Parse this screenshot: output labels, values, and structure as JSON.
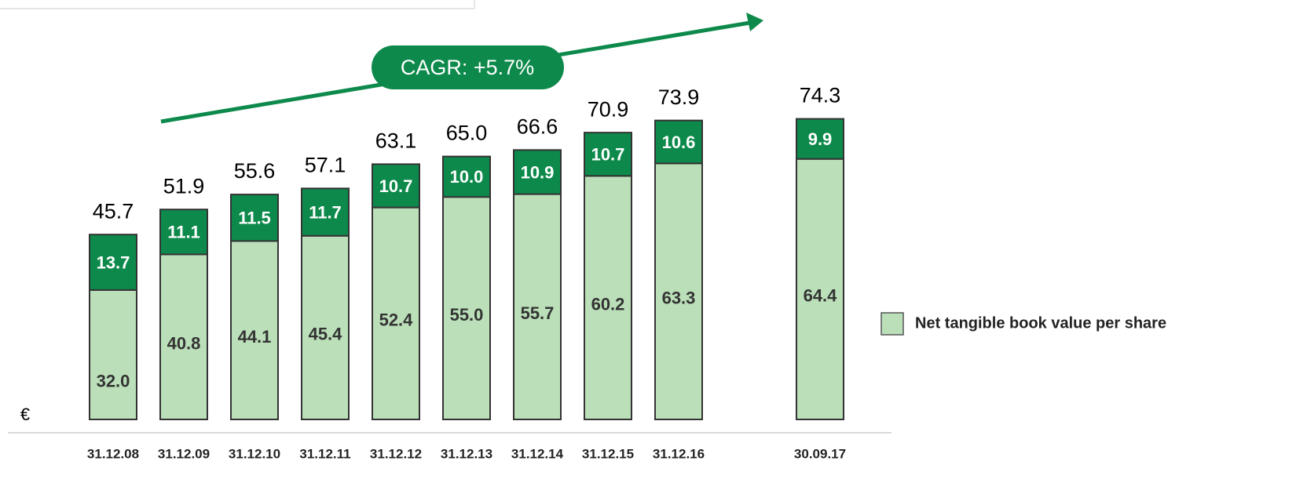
{
  "chart_data": {
    "type": "stacked_bar",
    "annotation": "CAGR: +5.7%",
    "unit_label": "€",
    "categories": [
      "31.12.08",
      "31.12.09",
      "31.12.10",
      "31.12.11",
      "31.12.12",
      "31.12.13",
      "31.12.14",
      "31.12.15",
      "31.12.16",
      "30.09.17"
    ],
    "series": [
      {
        "name": "Net tangible book value per share",
        "color": "#bbe0b9",
        "values": [
          32.0,
          40.8,
          44.1,
          45.4,
          52.4,
          55.0,
          55.7,
          60.2,
          63.3,
          64.4
        ],
        "value_labels": [
          "32.0",
          "40.8",
          "44.1",
          "45.4",
          "52.4",
          "55.0",
          "55.7",
          "60.2",
          "63.3",
          "64.4"
        ]
      },
      {
        "color": "#0d8a4b",
        "values": [
          13.7,
          11.1,
          11.5,
          11.7,
          10.7,
          10.0,
          10.9,
          10.7,
          10.6,
          9.9
        ],
        "value_labels": [
          "13.7",
          "11.1",
          "11.5",
          "11.7",
          "10.7",
          "10.0",
          "10.9",
          "10.7",
          "10.6",
          "9.9"
        ]
      }
    ],
    "totals": [
      45.7,
      51.9,
      55.6,
      57.1,
      63.1,
      65.0,
      66.6,
      70.9,
      73.9,
      74.3
    ],
    "total_labels": [
      "45.7",
      "51.9",
      "55.6",
      "57.1",
      "63.1",
      "65.0",
      "66.6",
      "70.9",
      "73.9",
      "74.3"
    ],
    "legend": "right"
  }
}
